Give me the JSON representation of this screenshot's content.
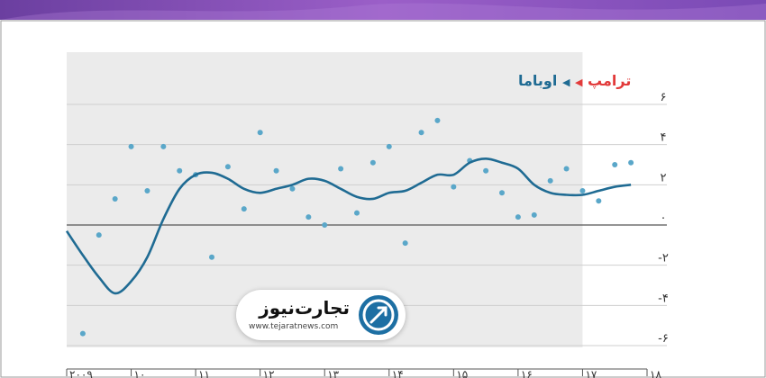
{
  "legend": {
    "trump": "ترامپ",
    "obama": "اوباما"
  },
  "logo": {
    "name": "تجارت‌نیوز",
    "url": "www.tejaratnews.com"
  },
  "chart_data": {
    "type": "line",
    "title": "",
    "xlabel": "",
    "ylabel": "",
    "ylim": [
      -6,
      6
    ],
    "xlim": [
      2009,
      2018
    ],
    "yticks": [
      6,
      4,
      2,
      0,
      -2,
      -4,
      -6
    ],
    "ytick_labels": [
      "۶",
      "۴",
      "۲",
      "۰",
      "-۲",
      "-۴",
      "-۶"
    ],
    "xticks": [
      2009,
      2010,
      2011,
      2012,
      2013,
      2014,
      2015,
      2016,
      2017,
      2018
    ],
    "xtick_labels": [
      "۲۰۰۹",
      "۱۰",
      "۱۱",
      "۱۲",
      "۱۳",
      "۱۴",
      "۱۵",
      "۱۶",
      "۱۷",
      "۱۸"
    ],
    "shaded_period": {
      "from": 2009,
      "to": 2017,
      "label": "اوباما"
    },
    "colors": {
      "line": "#1f6b93",
      "points": "#5aa7c9",
      "shade": "#ebebeb",
      "trump": "#e23a3a",
      "obama": "#1f6b93"
    },
    "series": [
      {
        "type": "line",
        "x": [
          2009.0,
          2009.25,
          2009.5,
          2009.75,
          2010.0,
          2010.25,
          2010.5,
          2010.75,
          2011.0,
          2011.25,
          2011.5,
          2011.75,
          2012.0,
          2012.25,
          2012.5,
          2012.75,
          2013.0,
          2013.25,
          2013.5,
          2013.75,
          2014.0,
          2014.25,
          2014.5,
          2014.75,
          2015.0,
          2015.25,
          2015.5,
          2015.75,
          2016.0,
          2016.25,
          2016.5,
          2016.75,
          2017.0,
          2017.25,
          2017.5,
          2017.75
        ],
        "values": [
          -0.3,
          -1.5,
          -2.6,
          -3.4,
          -2.8,
          -1.6,
          0.3,
          1.8,
          2.5,
          2.6,
          2.3,
          1.8,
          1.6,
          1.8,
          2.0,
          2.3,
          2.2,
          1.8,
          1.4,
          1.3,
          1.6,
          1.7,
          2.1,
          2.5,
          2.5,
          3.1,
          3.3,
          3.1,
          2.8,
          2.0,
          1.6,
          1.5,
          1.5,
          1.7,
          1.9,
          2.0
        ]
      },
      {
        "type": "scatter",
        "x": [
          2009.25,
          2009.5,
          2009.75,
          2010.0,
          2010.25,
          2010.5,
          2010.75,
          2011.0,
          2011.25,
          2011.5,
          2011.75,
          2012.0,
          2012.25,
          2012.5,
          2012.75,
          2013.0,
          2013.25,
          2013.5,
          2013.75,
          2014.0,
          2014.25,
          2014.5,
          2014.75,
          2015.0,
          2015.25,
          2015.5,
          2015.75,
          2016.0,
          2016.25,
          2016.5,
          2016.75,
          2017.0,
          2017.25,
          2017.5,
          2017.75
        ],
        "values": [
          -5.4,
          -0.5,
          1.3,
          3.9,
          1.7,
          3.9,
          2.7,
          2.5,
          -1.6,
          2.9,
          0.8,
          4.6,
          2.7,
          1.8,
          0.4,
          0.0,
          2.8,
          0.6,
          3.1,
          3.9,
          -0.9,
          4.6,
          5.2,
          1.9,
          3.2,
          2.7,
          1.6,
          0.4,
          0.5,
          2.2,
          2.8,
          1.7,
          1.2,
          3.0,
          3.1
        ]
      }
    ]
  }
}
